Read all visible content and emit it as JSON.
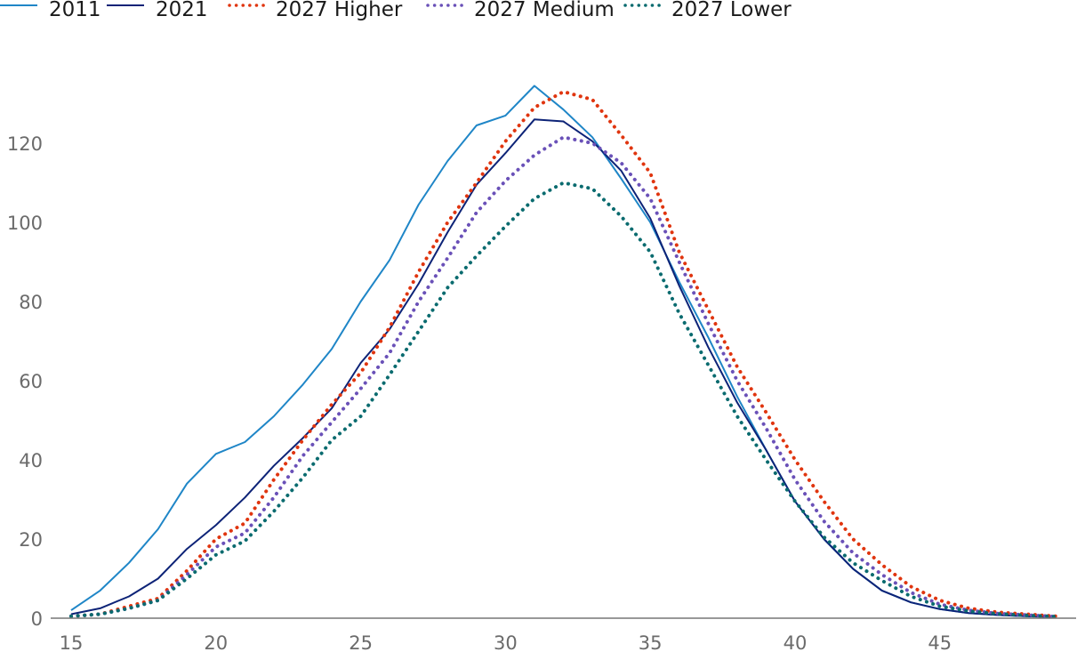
{
  "chart_data": {
    "type": "line",
    "title": "",
    "xlabel": "",
    "ylabel": "",
    "xlim": [
      14.3,
      49.6
    ],
    "ylim": [
      0,
      140
    ],
    "x_ticks": [
      15,
      20,
      25,
      30,
      35,
      40,
      45
    ],
    "y_ticks": [
      0,
      20,
      40,
      60,
      80,
      100,
      120
    ],
    "grid": false,
    "legend": "top-left",
    "x": [
      15,
      16,
      17,
      18,
      19,
      20,
      21,
      22,
      23,
      24,
      25,
      26,
      27,
      28,
      29,
      30,
      31,
      32,
      33,
      34,
      35,
      36,
      37,
      38,
      39,
      40,
      41,
      42,
      43,
      44,
      45,
      46,
      47,
      48,
      49
    ],
    "series": [
      {
        "name": "2011",
        "color": "#1f86c7",
        "style": "solid",
        "values": [
          2,
          7,
          14,
          22.5,
          34,
          41.5,
          44.5,
          51,
          59,
          68,
          80,
          90.5,
          104.5,
          115.5,
          124.5,
          127,
          134.5,
          128.5,
          121.5,
          111,
          100,
          85,
          71,
          56,
          42.5,
          29.5,
          20,
          12.5,
          7,
          4,
          2.3,
          1.3,
          0.8,
          0.5,
          0.3
        ]
      },
      {
        "name": "2021",
        "color": "#0d2377",
        "style": "solid",
        "values": [
          1,
          2.5,
          5.5,
          10,
          17.5,
          23.5,
          30.5,
          38.5,
          45.5,
          53,
          64.5,
          73,
          84.5,
          97.5,
          109.5,
          117.5,
          126,
          125.5,
          120.5,
          113,
          101,
          84,
          68.5,
          54.5,
          42.5,
          29.5,
          20,
          12.5,
          7,
          4,
          2.3,
          1.3,
          0.8,
          0.5,
          0.3
        ]
      },
      {
        "name": "2027 Higher",
        "color": "#e0350f",
        "style": "dotted",
        "values": [
          0.5,
          1,
          3,
          5,
          12,
          20,
          24,
          35,
          45,
          54,
          62,
          73.5,
          87.5,
          100,
          110,
          120.5,
          129,
          133,
          131,
          122,
          112.5,
          92.5,
          78,
          63.5,
          52,
          40,
          29.5,
          20,
          13.5,
          8,
          4.5,
          2.5,
          1.5,
          1,
          0.5
        ]
      },
      {
        "name": "2027 Medium",
        "color": "#6a51b8",
        "style": "dotted",
        "values": [
          0.5,
          1,
          2.5,
          4.5,
          11,
          18,
          21.5,
          30.5,
          41,
          49.5,
          58,
          67,
          80,
          91,
          102.5,
          110.5,
          117,
          121.5,
          120,
          115,
          106,
          90,
          74.5,
          60,
          48,
          35,
          24.5,
          16.5,
          11,
          6.5,
          3.5,
          2,
          1.2,
          0.8,
          0.4
        ]
      },
      {
        "name": "2027 Lower",
        "color": "#0a6b6f",
        "style": "dotted",
        "values": [
          0.5,
          1,
          2.5,
          4.5,
          10,
          16,
          19.5,
          27,
          35.5,
          45,
          51,
          61.5,
          72.5,
          83.5,
          91.5,
          99,
          106,
          110,
          108.5,
          101.5,
          92.5,
          77,
          64,
          51,
          40,
          29.5,
          20.5,
          14,
          9.5,
          5.5,
          3,
          1.8,
          1.1,
          0.7,
          0.4
        ]
      }
    ]
  }
}
